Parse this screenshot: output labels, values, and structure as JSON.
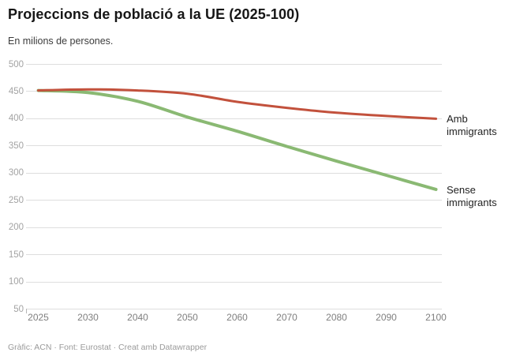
{
  "header": {
    "title": "Projeccions de població a la UE (2025-100)",
    "subtitle": "En milions de persones."
  },
  "chart_data": {
    "type": "line",
    "x": [
      2025,
      2030,
      2040,
      2050,
      2060,
      2070,
      2080,
      2090,
      2100
    ],
    "x_tick_labels": [
      "2025",
      "2030",
      "2040",
      "2050",
      "2060",
      "2070",
      "2080",
      "2090",
      "2100"
    ],
    "x_spacing": "even",
    "y_ticks": [
      500,
      450,
      400,
      350,
      300,
      250,
      200,
      150,
      100,
      50
    ],
    "ylim": [
      50,
      500
    ],
    "grid": true,
    "legend_position": "right-of-line-ends",
    "series": [
      {
        "name": "Sense immigrants",
        "color": "#8ab973",
        "stroke_width": 4,
        "values": [
          452,
          448,
          432,
          403,
          377,
          349,
          322,
          296,
          270
        ]
      },
      {
        "name": "Amb immigrants",
        "color": "#c2513c",
        "stroke_width": 3,
        "values": [
          452,
          454,
          452,
          446,
          431,
          420,
          411,
          405,
          400
        ]
      }
    ],
    "end_labels": [
      {
        "series": "Amb immigrants",
        "text": "Amb immigrants"
      },
      {
        "series": "Sense immigrants",
        "text": "Sense immigrants"
      }
    ]
  },
  "footer": {
    "credit": "Gràfic: ACN · Font: Eurostat · Creat amb Datawrapper"
  }
}
